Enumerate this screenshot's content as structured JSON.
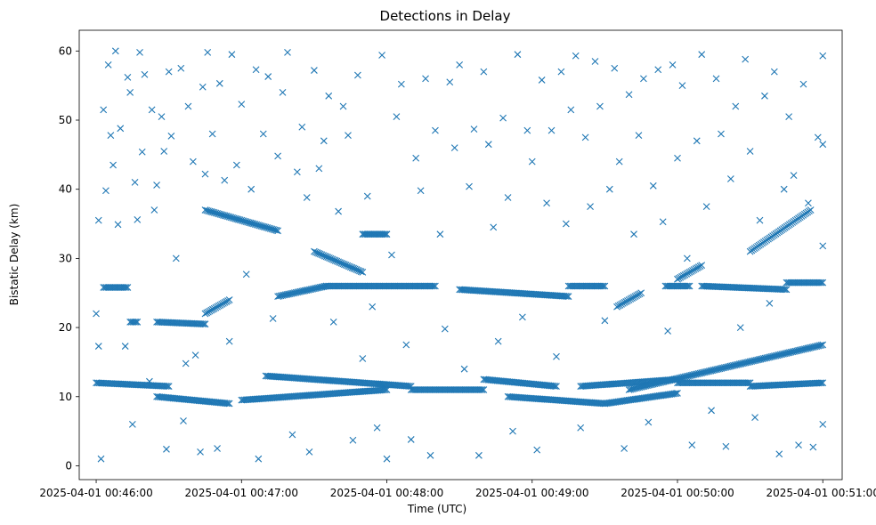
{
  "chart_data": {
    "type": "scatter",
    "title": "Detections in Delay",
    "xlabel": "Time (UTC)",
    "ylabel": "Bistatic Delay (km)",
    "marker": "x",
    "color": "#1f77b4",
    "xlim": [
      "2025-04-01 00:45:53",
      "2025-04-01 00:51:08"
    ],
    "ylim": [
      -2,
      63
    ],
    "x_ticks": [
      "2025-04-01 00:46:00",
      "2025-04-01 00:47:00",
      "2025-04-01 00:48:00",
      "2025-04-01 00:49:00",
      "2025-04-01 00:50:00",
      "2025-04-01 00:51:00"
    ],
    "y_ticks": [
      "0",
      "10",
      "20",
      "30",
      "40",
      "50",
      "60"
    ],
    "grid": false,
    "legend": "none",
    "tracks": [
      {
        "x_start": "2025-04-01 00:46:03",
        "x_end": "2025-04-01 00:46:13",
        "y_start": 25.8,
        "y_end": 25.8
      },
      {
        "x_start": "2025-04-01 00:46:14",
        "x_end": "2025-04-01 00:46:17",
        "y_start": 20.8,
        "y_end": 20.8
      },
      {
        "x_start": "2025-04-01 00:46:25",
        "x_end": "2025-04-01 00:46:45",
        "y_start": 20.8,
        "y_end": 20.5
      },
      {
        "x_start": "2025-04-01 00:46:45",
        "x_end": "2025-04-01 00:46:55",
        "y_start": 22.0,
        "y_end": 24.0
      },
      {
        "x_start": "2025-04-01 00:46:45",
        "x_end": "2025-04-01 00:47:15",
        "y_start": 37.0,
        "y_end": 34.0
      },
      {
        "x_start": "2025-04-01 00:47:15",
        "x_end": "2025-04-01 00:47:35",
        "y_start": 24.5,
        "y_end": 26.0
      },
      {
        "x_start": "2025-04-01 00:47:30",
        "x_end": "2025-04-01 00:47:50",
        "y_start": 31.0,
        "y_end": 28.0
      },
      {
        "x_start": "2025-04-01 00:47:50",
        "x_end": "2025-04-01 00:48:00",
        "y_start": 33.5,
        "y_end": 33.5
      },
      {
        "x_start": "2025-04-01 00:47:35",
        "x_end": "2025-04-01 00:48:20",
        "y_start": 26.0,
        "y_end": 26.0
      },
      {
        "x_start": "2025-04-01 00:48:30",
        "x_end": "2025-04-01 00:49:15",
        "y_start": 25.5,
        "y_end": 24.5
      },
      {
        "x_start": "2025-04-01 00:49:15",
        "x_end": "2025-04-01 00:49:30",
        "y_start": 26.0,
        "y_end": 26.0
      },
      {
        "x_start": "2025-04-01 00:49:35",
        "x_end": "2025-04-01 00:49:45",
        "y_start": 23.0,
        "y_end": 25.0
      },
      {
        "x_start": "2025-04-01 00:49:55",
        "x_end": "2025-04-01 00:50:05",
        "y_start": 26.0,
        "y_end": 26.0
      },
      {
        "x_start": "2025-04-01 00:50:00",
        "x_end": "2025-04-01 00:50:10",
        "y_start": 27.0,
        "y_end": 29.0
      },
      {
        "x_start": "2025-04-01 00:50:10",
        "x_end": "2025-04-01 00:50:45",
        "y_start": 26.0,
        "y_end": 25.5
      },
      {
        "x_start": "2025-04-01 00:50:45",
        "x_end": "2025-04-01 00:51:00",
        "y_start": 26.5,
        "y_end": 26.5
      },
      {
        "x_start": "2025-04-01 00:50:30",
        "x_end": "2025-04-01 00:50:55",
        "y_start": 31.0,
        "y_end": 37.0
      },
      {
        "x_start": "2025-04-01 00:46:00",
        "x_end": "2025-04-01 00:46:30",
        "y_start": 12.0,
        "y_end": 11.5
      },
      {
        "x_start": "2025-04-01 00:46:25",
        "x_end": "2025-04-01 00:46:55",
        "y_start": 10.0,
        "y_end": 9.0
      },
      {
        "x_start": "2025-04-01 00:47:00",
        "x_end": "2025-04-01 00:48:00",
        "y_start": 9.5,
        "y_end": 11.0
      },
      {
        "x_start": "2025-04-01 00:47:10",
        "x_end": "2025-04-01 00:48:10",
        "y_start": 13.0,
        "y_end": 11.5
      },
      {
        "x_start": "2025-04-01 00:48:10",
        "x_end": "2025-04-01 00:48:40",
        "y_start": 11.0,
        "y_end": 11.0
      },
      {
        "x_start": "2025-04-01 00:48:40",
        "x_end": "2025-04-01 00:49:10",
        "y_start": 12.5,
        "y_end": 11.5
      },
      {
        "x_start": "2025-04-01 00:48:50",
        "x_end": "2025-04-01 00:49:30",
        "y_start": 10.0,
        "y_end": 9.0
      },
      {
        "x_start": "2025-04-01 00:49:20",
        "x_end": "2025-04-01 00:50:00",
        "y_start": 11.5,
        "y_end": 12.5
      },
      {
        "x_start": "2025-04-01 00:49:30",
        "x_end": "2025-04-01 00:50:00",
        "y_start": 9.0,
        "y_end": 10.5
      },
      {
        "x_start": "2025-04-01 00:50:00",
        "x_end": "2025-04-01 00:50:30",
        "y_start": 12.0,
        "y_end": 12.0
      },
      {
        "x_start": "2025-04-01 00:49:40",
        "x_end": "2025-04-01 00:51:00",
        "y_start": 11.0,
        "y_end": 17.5
      },
      {
        "x_start": "2025-04-01 00:50:30",
        "x_end": "2025-04-01 00:51:00",
        "y_start": 11.5,
        "y_end": 12.0
      }
    ],
    "scatter_points": [
      [
        "2025-04-01 00:46:00",
        22.0
      ],
      [
        "2025-04-01 00:46:01",
        35.5
      ],
      [
        "2025-04-01 00:46:01",
        17.3
      ],
      [
        "2025-04-01 00:46:02",
        1.0
      ],
      [
        "2025-04-01 00:46:03",
        51.5
      ],
      [
        "2025-04-01 00:46:04",
        39.8
      ],
      [
        "2025-04-01 00:46:05",
        58.0
      ],
      [
        "2025-04-01 00:46:06",
        47.8
      ],
      [
        "2025-04-01 00:46:07",
        43.5
      ],
      [
        "2025-04-01 00:46:08",
        60.0
      ],
      [
        "2025-04-01 00:46:09",
        34.9
      ],
      [
        "2025-04-01 00:46:10",
        48.8
      ],
      [
        "2025-04-01 00:46:12",
        17.3
      ],
      [
        "2025-04-01 00:46:13",
        56.2
      ],
      [
        "2025-04-01 00:46:14",
        54.0
      ],
      [
        "2025-04-01 00:46:15",
        6.0
      ],
      [
        "2025-04-01 00:46:16",
        41.0
      ],
      [
        "2025-04-01 00:46:17",
        35.6
      ],
      [
        "2025-04-01 00:46:18",
        59.8
      ],
      [
        "2025-04-01 00:46:19",
        45.4
      ],
      [
        "2025-04-01 00:46:20",
        56.6
      ],
      [
        "2025-04-01 00:46:22",
        12.2
      ],
      [
        "2025-04-01 00:46:23",
        51.5
      ],
      [
        "2025-04-01 00:46:24",
        37.0
      ],
      [
        "2025-04-01 00:46:25",
        40.6
      ],
      [
        "2025-04-01 00:46:27",
        50.5
      ],
      [
        "2025-04-01 00:46:28",
        45.5
      ],
      [
        "2025-04-01 00:46:29",
        2.4
      ],
      [
        "2025-04-01 00:46:30",
        57.0
      ],
      [
        "2025-04-01 00:46:31",
        47.7
      ],
      [
        "2025-04-01 00:46:33",
        30.0
      ],
      [
        "2025-04-01 00:46:35",
        57.5
      ],
      [
        "2025-04-01 00:46:36",
        6.5
      ],
      [
        "2025-04-01 00:46:37",
        14.8
      ],
      [
        "2025-04-01 00:46:38",
        52.0
      ],
      [
        "2025-04-01 00:46:40",
        44.0
      ],
      [
        "2025-04-01 00:46:41",
        16.0
      ],
      [
        "2025-04-01 00:46:43",
        2.0
      ],
      [
        "2025-04-01 00:46:44",
        54.8
      ],
      [
        "2025-04-01 00:46:45",
        42.2
      ],
      [
        "2025-04-01 00:46:46",
        59.8
      ],
      [
        "2025-04-01 00:46:48",
        48.0
      ],
      [
        "2025-04-01 00:46:50",
        2.5
      ],
      [
        "2025-04-01 00:46:51",
        55.3
      ],
      [
        "2025-04-01 00:46:53",
        41.3
      ],
      [
        "2025-04-01 00:46:55",
        18.0
      ],
      [
        "2025-04-01 00:46:56",
        59.5
      ],
      [
        "2025-04-01 00:46:58",
        43.5
      ],
      [
        "2025-04-01 00:47:00",
        52.3
      ],
      [
        "2025-04-01 00:47:02",
        27.7
      ],
      [
        "2025-04-01 00:47:04",
        40.0
      ],
      [
        "2025-04-01 00:47:06",
        57.3
      ],
      [
        "2025-04-01 00:47:07",
        1.0
      ],
      [
        "2025-04-01 00:47:09",
        48.0
      ],
      [
        "2025-04-01 00:47:11",
        56.3
      ],
      [
        "2025-04-01 00:47:13",
        21.3
      ],
      [
        "2025-04-01 00:47:15",
        44.8
      ],
      [
        "2025-04-01 00:47:17",
        54.0
      ],
      [
        "2025-04-01 00:47:19",
        59.8
      ],
      [
        "2025-04-01 00:47:21",
        4.5
      ],
      [
        "2025-04-01 00:47:23",
        42.5
      ],
      [
        "2025-04-01 00:47:25",
        49.0
      ],
      [
        "2025-04-01 00:47:27",
        38.8
      ],
      [
        "2025-04-01 00:47:28",
        2.0
      ],
      [
        "2025-04-01 00:47:30",
        57.2
      ],
      [
        "2025-04-01 00:47:32",
        43.0
      ],
      [
        "2025-04-01 00:47:34",
        47.0
      ],
      [
        "2025-04-01 00:47:36",
        53.5
      ],
      [
        "2025-04-01 00:47:38",
        20.8
      ],
      [
        "2025-04-01 00:47:40",
        36.8
      ],
      [
        "2025-04-01 00:47:42",
        52.0
      ],
      [
        "2025-04-01 00:47:44",
        47.8
      ],
      [
        "2025-04-01 00:47:46",
        3.7
      ],
      [
        "2025-04-01 00:47:48",
        56.5
      ],
      [
        "2025-04-01 00:47:50",
        15.5
      ],
      [
        "2025-04-01 00:47:52",
        39.0
      ],
      [
        "2025-04-01 00:47:54",
        23.0
      ],
      [
        "2025-04-01 00:47:56",
        5.5
      ],
      [
        "2025-04-01 00:47:58",
        59.4
      ],
      [
        "2025-04-01 00:48:00",
        1.0
      ],
      [
        "2025-04-01 00:48:02",
        30.5
      ],
      [
        "2025-04-01 00:48:04",
        50.5
      ],
      [
        "2025-04-01 00:48:06",
        55.2
      ],
      [
        "2025-04-01 00:48:08",
        17.5
      ],
      [
        "2025-04-01 00:48:10",
        3.8
      ],
      [
        "2025-04-01 00:48:12",
        44.5
      ],
      [
        "2025-04-01 00:48:14",
        39.8
      ],
      [
        "2025-04-01 00:48:16",
        56.0
      ],
      [
        "2025-04-01 00:48:18",
        1.5
      ],
      [
        "2025-04-01 00:48:20",
        48.5
      ],
      [
        "2025-04-01 00:48:22",
        33.5
      ],
      [
        "2025-04-01 00:48:24",
        19.8
      ],
      [
        "2025-04-01 00:48:26",
        55.5
      ],
      [
        "2025-04-01 00:48:28",
        46.0
      ],
      [
        "2025-04-01 00:48:30",
        58.0
      ],
      [
        "2025-04-01 00:48:32",
        14.0
      ],
      [
        "2025-04-01 00:48:34",
        40.4
      ],
      [
        "2025-04-01 00:48:36",
        48.7
      ],
      [
        "2025-04-01 00:48:38",
        1.5
      ],
      [
        "2025-04-01 00:48:40",
        57.0
      ],
      [
        "2025-04-01 00:48:42",
        46.5
      ],
      [
        "2025-04-01 00:48:44",
        34.5
      ],
      [
        "2025-04-01 00:48:46",
        18.0
      ],
      [
        "2025-04-01 00:48:48",
        50.3
      ],
      [
        "2025-04-01 00:48:50",
        38.8
      ],
      [
        "2025-04-01 00:48:52",
        5.0
      ],
      [
        "2025-04-01 00:48:54",
        59.5
      ],
      [
        "2025-04-01 00:48:56",
        21.5
      ],
      [
        "2025-04-01 00:48:58",
        48.5
      ],
      [
        "2025-04-01 00:49:00",
        44.0
      ],
      [
        "2025-04-01 00:49:02",
        2.3
      ],
      [
        "2025-04-01 00:49:04",
        55.8
      ],
      [
        "2025-04-01 00:49:06",
        38.0
      ],
      [
        "2025-04-01 00:49:08",
        48.5
      ],
      [
        "2025-04-01 00:49:10",
        15.8
      ],
      [
        "2025-04-01 00:49:12",
        57.0
      ],
      [
        "2025-04-01 00:49:14",
        35.0
      ],
      [
        "2025-04-01 00:49:16",
        51.5
      ],
      [
        "2025-04-01 00:49:18",
        59.3
      ],
      [
        "2025-04-01 00:49:20",
        5.5
      ],
      [
        "2025-04-01 00:49:22",
        47.5
      ],
      [
        "2025-04-01 00:49:24",
        37.5
      ],
      [
        "2025-04-01 00:49:26",
        58.5
      ],
      [
        "2025-04-01 00:49:28",
        52.0
      ],
      [
        "2025-04-01 00:49:30",
        21.0
      ],
      [
        "2025-04-01 00:49:32",
        40.0
      ],
      [
        "2025-04-01 00:49:34",
        57.5
      ],
      [
        "2025-04-01 00:49:36",
        44.0
      ],
      [
        "2025-04-01 00:49:38",
        2.5
      ],
      [
        "2025-04-01 00:49:40",
        53.7
      ],
      [
        "2025-04-01 00:49:42",
        33.5
      ],
      [
        "2025-04-01 00:49:44",
        47.8
      ],
      [
        "2025-04-01 00:49:46",
        56.0
      ],
      [
        "2025-04-01 00:49:48",
        6.3
      ],
      [
        "2025-04-01 00:49:50",
        40.5
      ],
      [
        "2025-04-01 00:49:52",
        57.3
      ],
      [
        "2025-04-01 00:49:54",
        35.3
      ],
      [
        "2025-04-01 00:49:56",
        19.5
      ],
      [
        "2025-04-01 00:49:58",
        58.0
      ],
      [
        "2025-04-01 00:50:00",
        44.5
      ],
      [
        "2025-04-01 00:50:02",
        55.0
      ],
      [
        "2025-04-01 00:50:04",
        30.0
      ],
      [
        "2025-04-01 00:50:06",
        3.0
      ],
      [
        "2025-04-01 00:50:08",
        47.0
      ],
      [
        "2025-04-01 00:50:10",
        59.5
      ],
      [
        "2025-04-01 00:50:12",
        37.5
      ],
      [
        "2025-04-01 00:50:14",
        8.0
      ],
      [
        "2025-04-01 00:50:16",
        56.0
      ],
      [
        "2025-04-01 00:50:18",
        48.0
      ],
      [
        "2025-04-01 00:50:20",
        2.8
      ],
      [
        "2025-04-01 00:50:22",
        41.5
      ],
      [
        "2025-04-01 00:50:24",
        52.0
      ],
      [
        "2025-04-01 00:50:26",
        20.0
      ],
      [
        "2025-04-01 00:50:28",
        58.8
      ],
      [
        "2025-04-01 00:50:30",
        45.5
      ],
      [
        "2025-04-01 00:50:32",
        7.0
      ],
      [
        "2025-04-01 00:50:34",
        35.5
      ],
      [
        "2025-04-01 00:50:36",
        53.5
      ],
      [
        "2025-04-01 00:50:38",
        23.5
      ],
      [
        "2025-04-01 00:50:40",
        57.0
      ],
      [
        "2025-04-01 00:50:42",
        1.7
      ],
      [
        "2025-04-01 00:50:44",
        40.0
      ],
      [
        "2025-04-01 00:50:46",
        50.5
      ],
      [
        "2025-04-01 00:50:48",
        42.0
      ],
      [
        "2025-04-01 00:50:50",
        3.0
      ],
      [
        "2025-04-01 00:50:52",
        55.2
      ],
      [
        "2025-04-01 00:50:54",
        38.0
      ],
      [
        "2025-04-01 00:50:56",
        2.7
      ],
      [
        "2025-04-01 00:50:58",
        47.5
      ],
      [
        "2025-04-01 00:51:00",
        59.3
      ],
      [
        "2025-04-01 00:51:00",
        46.5
      ],
      [
        "2025-04-01 00:51:00",
        31.8
      ],
      [
        "2025-04-01 00:51:00",
        6.0
      ]
    ]
  }
}
